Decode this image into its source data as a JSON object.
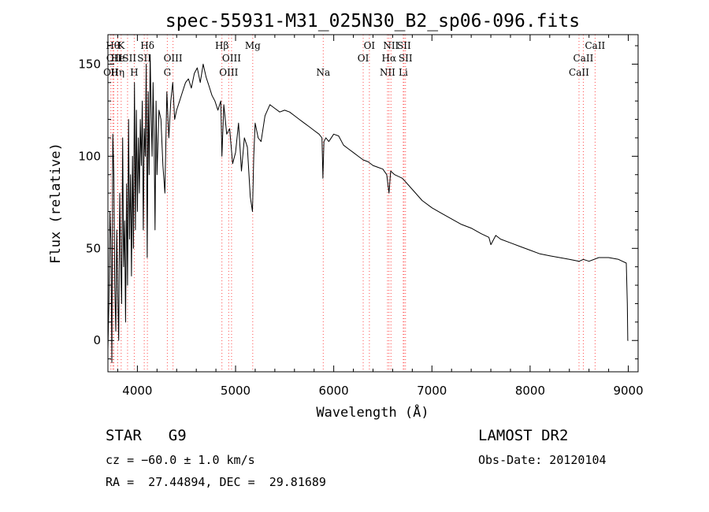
{
  "chart_data": {
    "type": "line",
    "title": "spec-55931-M31_025N30_B2_sp06-096.fits",
    "xlabel": "Wavelength (Å)",
    "ylabel": "Flux (relative)",
    "xlim": [
      3700,
      9100
    ],
    "ylim": [
      -17,
      166
    ],
    "xticks": [
      "4000",
      "5000",
      "6000",
      "7000",
      "8000",
      "9000"
    ],
    "xtick_values": [
      4000,
      5000,
      6000,
      7000,
      8000,
      9000
    ],
    "yticks": [
      "0",
      "50",
      "100",
      "150"
    ],
    "ytick_values": [
      0,
      50,
      100,
      150
    ],
    "grid": false,
    "series": [
      {
        "x": [
          3700,
          3710,
          3720,
          3730,
          3740,
          3750,
          3760,
          3770,
          3780,
          3790,
          3800,
          3810,
          3820,
          3830,
          3840,
          3850,
          3860,
          3870,
          3880,
          3890,
          3900,
          3910,
          3920,
          3930,
          3940,
          3950,
          3960,
          3970,
          3980,
          3990,
          4000,
          4010,
          4020,
          4030,
          4040,
          4050,
          4060,
          4070,
          4080,
          4090,
          4100,
          4110,
          4120,
          4130,
          4140,
          4150,
          4160,
          4170,
          4180,
          4190,
          4200,
          4220,
          4240,
          4260,
          4280,
          4300,
          4320,
          4340,
          4360,
          4380,
          4400,
          4430,
          4460,
          4490,
          4520,
          4550,
          4580,
          4610,
          4640,
          4670,
          4700,
          4730,
          4760,
          4790,
          4820,
          4850,
          4861,
          4880,
          4910,
          4940,
          4970,
          5000,
          5030,
          5060,
          5090,
          5120,
          5150,
          5172,
          5185,
          5200,
          5230,
          5260,
          5300,
          5350,
          5400,
          5450,
          5500,
          5550,
          5600,
          5650,
          5700,
          5750,
          5800,
          5850,
          5880,
          5890,
          5900,
          5920,
          5950,
          6000,
          6050,
          6100,
          6150,
          6200,
          6250,
          6300,
          6350,
          6400,
          6450,
          6500,
          6540,
          6563,
          6580,
          6620,
          6700,
          6800,
          6900,
          7000,
          7100,
          7200,
          7300,
          7400,
          7500,
          7580,
          7600,
          7650,
          7700,
          7800,
          7900,
          8000,
          8100,
          8200,
          8300,
          8400,
          8500,
          8542,
          8600,
          8700,
          8800,
          8900,
          8980,
          8990,
          8995,
          9000
        ],
        "y": [
          -5,
          20,
          70,
          55,
          -12,
          112,
          90,
          30,
          5,
          60,
          25,
          0,
          80,
          45,
          20,
          110,
          40,
          65,
          10,
          85,
          30,
          120,
          55,
          90,
          35,
          100,
          50,
          140,
          60,
          125,
          70,
          110,
          80,
          120,
          95,
          130,
          60,
          115,
          100,
          150,
          45,
          135,
          90,
          155,
          125,
          100,
          140,
          110,
          60,
          130,
          90,
          125,
          120,
          95,
          80,
          135,
          110,
          130,
          140,
          120,
          125,
          130,
          135,
          140,
          142,
          137,
          145,
          148,
          140,
          150,
          143,
          138,
          133,
          130,
          125,
          130,
          100,
          128,
          112,
          115,
          96,
          102,
          118,
          92,
          110,
          105,
          78,
          70,
          100,
          118,
          110,
          108,
          122,
          128,
          126,
          124,
          125,
          124,
          122,
          120,
          118,
          116,
          114,
          112,
          110,
          88,
          108,
          110,
          108,
          112,
          111,
          106,
          104,
          102,
          100,
          98,
          97,
          95,
          94,
          93,
          90,
          80,
          92,
          90,
          88,
          82,
          76,
          72,
          69,
          66,
          63,
          61,
          58,
          56,
          52,
          57,
          55,
          53,
          51,
          49,
          47,
          46,
          45,
          44,
          43,
          44,
          43,
          45,
          45,
          44,
          42,
          20,
          0,
          0
        ]
      }
    ],
    "lines": [
      {
        "x": 3750,
        "label": "Hθ",
        "row": 0
      },
      {
        "x": 3760,
        "label": "OII",
        "row": 1
      },
      {
        "x": 3730,
        "label": "OII",
        "row": 2
      },
      {
        "x": 3835,
        "label": "K",
        "row": 0
      },
      {
        "x": 3800,
        "label": "He",
        "row": 1
      },
      {
        "x": 3798,
        "label": "Hη",
        "row": 2
      },
      {
        "x": 3900,
        "label": "ISII",
        "row": 1
      },
      {
        "x": 3968,
        "label": "H",
        "row": 2
      },
      {
        "x": 4102,
        "label": "Hδ",
        "row": 0
      },
      {
        "x": 4070,
        "label": "SII",
        "row": 1
      },
      {
        "x": 4363,
        "label": "OIII",
        "row": 1
      },
      {
        "x": 4305,
        "label": "G",
        "row": 2
      },
      {
        "x": 4861,
        "label": "Hβ",
        "row": 0
      },
      {
        "x": 4959,
        "label": "OIII",
        "row": 1
      },
      {
        "x": 4930,
        "label": "OIII",
        "row": 2
      },
      {
        "x": 5175,
        "label": "Mg",
        "row": 0
      },
      {
        "x": 5893,
        "label": "Na",
        "row": 2
      },
      {
        "x": 6363,
        "label": "OI",
        "row": 0
      },
      {
        "x": 6300,
        "label": "OI",
        "row": 1
      },
      {
        "x": 6583,
        "label": "NII",
        "row": 0
      },
      {
        "x": 6563,
        "label": "Hα",
        "row": 1
      },
      {
        "x": 6548,
        "label": "NII",
        "row": 2
      },
      {
        "x": 6716,
        "label": "SII",
        "row": 0
      },
      {
        "x": 6731,
        "label": "SII",
        "row": 1
      },
      {
        "x": 6708,
        "label": "Li",
        "row": 2
      },
      {
        "x": 8662,
        "label": "CaII",
        "row": 0
      },
      {
        "x": 8542,
        "label": "CaII",
        "row": 1
      },
      {
        "x": 8498,
        "label": "CaII",
        "row": 2
      }
    ]
  },
  "info": {
    "class_label": "STAR",
    "subclass_label": "G9",
    "cz_text": "cz = −60.0 ± 1.0 km/s",
    "radec_text": "RA =  27.44894, DEC =  29.81689",
    "survey": "LAMOST DR2",
    "obs_date_text": "Obs-Date: 20120104"
  },
  "colors": {
    "spectrum": "#000000",
    "line_marker": "#ff4a4a",
    "axes": "#000000"
  }
}
